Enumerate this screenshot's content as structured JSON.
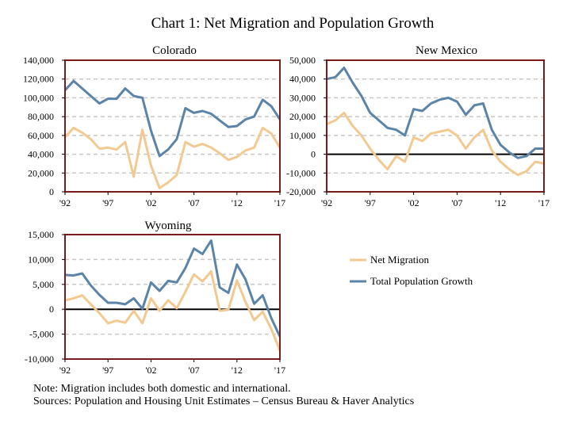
{
  "title": "Chart 1: Net Migration and Population Growth",
  "colors": {
    "net_migration": "#F3C992",
    "total_growth": "#5C84A8",
    "frame": "#7B1A1A",
    "grid": "#C8C8C8",
    "zero": "#000000"
  },
  "legend": {
    "net_migration": "Net Migration",
    "total_growth": "Total Population Growth"
  },
  "notes": {
    "note": "Note: Migration includes both domestic and international.",
    "sources": "Sources: Population and Housing Unit Estimates – Census Bureau & Haver Analytics"
  },
  "chart_data": [
    {
      "type": "line",
      "title": "Colorado",
      "x": [
        1992,
        1993,
        1994,
        1995,
        1996,
        1997,
        1998,
        1999,
        2000,
        2001,
        2002,
        2003,
        2004,
        2005,
        2006,
        2007,
        2008,
        2009,
        2010,
        2011,
        2012,
        2013,
        2014,
        2015,
        2016,
        2017
      ],
      "x_tick_labels": [
        "'92",
        "'97",
        "'02",
        "'07",
        "'12",
        "'17"
      ],
      "x_tick_values": [
        1992,
        1997,
        2002,
        2007,
        2012,
        2017
      ],
      "ylim": [
        0,
        140000
      ],
      "y_ticks": [
        0,
        20000,
        40000,
        60000,
        80000,
        100000,
        120000,
        140000
      ],
      "y_tick_labels": [
        "0",
        "20,000",
        "40,000",
        "60,000",
        "80,000",
        "100,000",
        "120,000",
        "140,000"
      ],
      "series": [
        {
          "name": "Net Migration",
          "values": [
            58000,
            68000,
            63000,
            56000,
            46000,
            47000,
            45000,
            53000,
            16000,
            66000,
            28000,
            4000,
            10000,
            18000,
            53000,
            48000,
            51000,
            47000,
            41000,
            34000,
            37000,
            44000,
            47000,
            68000,
            62000,
            47000
          ]
        },
        {
          "name": "Total Population Growth",
          "values": [
            108000,
            118000,
            110000,
            102000,
            94000,
            99000,
            99000,
            110000,
            102000,
            100000,
            65000,
            38000,
            45000,
            56000,
            89000,
            84000,
            86000,
            83000,
            76000,
            69000,
            70000,
            77000,
            80000,
            98000,
            91000,
            77000
          ]
        }
      ]
    },
    {
      "type": "line",
      "title": "New Mexico",
      "x": [
        1992,
        1993,
        1994,
        1995,
        1996,
        1997,
        1998,
        1999,
        2000,
        2001,
        2002,
        2003,
        2004,
        2005,
        2006,
        2007,
        2008,
        2009,
        2010,
        2011,
        2012,
        2013,
        2014,
        2015,
        2016,
        2017
      ],
      "x_tick_labels": [
        "'92",
        "'97",
        "'02",
        "'07",
        "'12",
        "'17"
      ],
      "x_tick_values": [
        1992,
        1997,
        2002,
        2007,
        2012,
        2017
      ],
      "ylim": [
        -20000,
        50000
      ],
      "y_ticks": [
        -20000,
        -10000,
        0,
        10000,
        20000,
        30000,
        40000,
        50000
      ],
      "y_tick_labels": [
        "-20,000",
        "-10,000",
        "0",
        "10,000",
        "20,000",
        "30,000",
        "40,000",
        "50,000"
      ],
      "series": [
        {
          "name": "Net Migration",
          "values": [
            16000,
            18000,
            22000,
            15000,
            10000,
            3000,
            -3000,
            -8000,
            -1000,
            -4000,
            9000,
            7000,
            11000,
            12000,
            13000,
            10000,
            3000,
            9000,
            13000,
            2000,
            -4000,
            -8000,
            -11000,
            -9000,
            -4000,
            -5000
          ]
        },
        {
          "name": "Total Population Growth",
          "values": [
            40000,
            41000,
            46000,
            38000,
            31000,
            22000,
            18000,
            14000,
            13000,
            10000,
            24000,
            23000,
            27000,
            29000,
            30000,
            28000,
            21000,
            26000,
            27000,
            13000,
            5000,
            1000,
            -2000,
            -1000,
            3000,
            3000
          ]
        }
      ]
    },
    {
      "type": "line",
      "title": "Wyoming",
      "x": [
        1992,
        1993,
        1994,
        1995,
        1996,
        1997,
        1998,
        1999,
        2000,
        2001,
        2002,
        2003,
        2004,
        2005,
        2006,
        2007,
        2008,
        2009,
        2010,
        2011,
        2012,
        2013,
        2014,
        2015,
        2016,
        2017
      ],
      "x_tick_labels": [
        "'92",
        "'97",
        "'02",
        "'07",
        "'12",
        "'17"
      ],
      "x_tick_values": [
        1992,
        1997,
        2002,
        2007,
        2012,
        2017
      ],
      "ylim": [
        -10000,
        15000
      ],
      "y_ticks": [
        -10000,
        -5000,
        0,
        5000,
        10000,
        15000
      ],
      "y_tick_labels": [
        "-10,000",
        "-5,000",
        "0",
        "5,000",
        "10,000",
        "15,000"
      ],
      "series": [
        {
          "name": "Net Migration",
          "values": [
            1800,
            2200,
            2800,
            1000,
            -800,
            -2800,
            -2300,
            -2700,
            -300,
            -2800,
            2200,
            -300,
            1800,
            200,
            3500,
            7000,
            5600,
            7600,
            -300,
            -100,
            5800,
            1500,
            -2200,
            -500,
            -4000,
            -8300
          ]
        },
        {
          "name": "Total Population Growth",
          "values": [
            6900,
            6800,
            7200,
            4800,
            2900,
            1300,
            1300,
            1000,
            2200,
            100,
            5400,
            3700,
            5700,
            5400,
            8300,
            12200,
            11100,
            13800,
            4400,
            3300,
            9000,
            6000,
            1100,
            2800,
            -1800,
            -5500
          ]
        }
      ]
    }
  ]
}
